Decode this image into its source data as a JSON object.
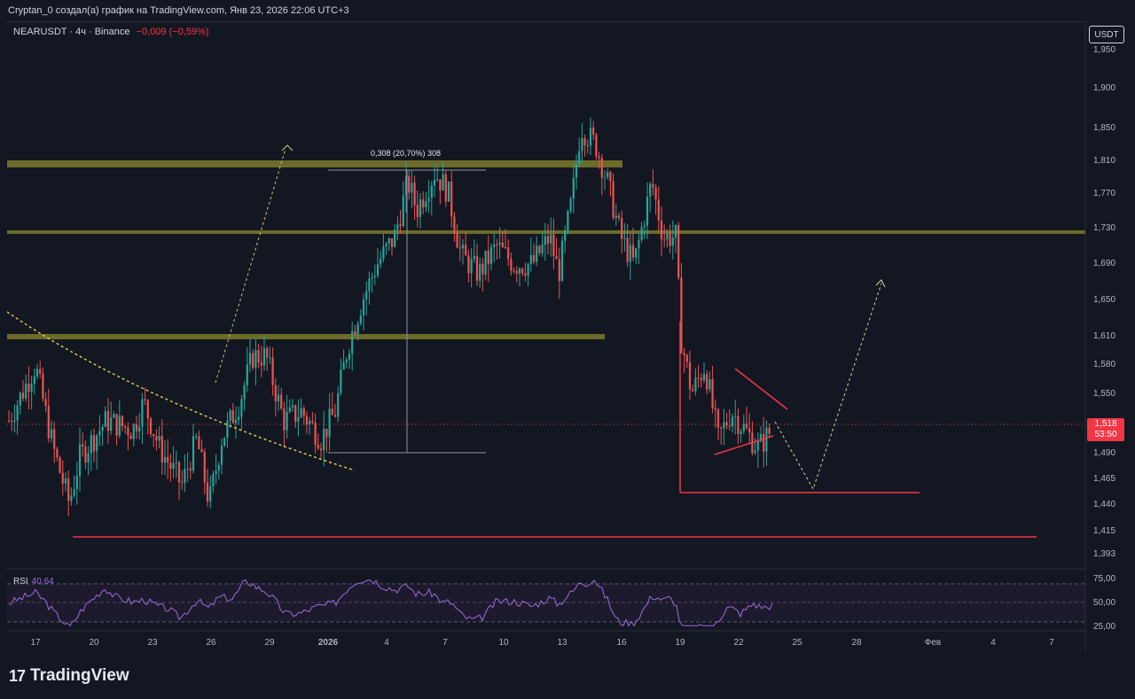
{
  "header": {
    "title": "Cryptan_0 создал(а) график на TradingView.com, Янв 23, 2026 22:06 UTC+3"
  },
  "symbol": {
    "name": "NEARUSDT · 4ч · Binance",
    "change": "−0,009 (−0,59%)"
  },
  "currency": "USDT",
  "current_price": {
    "value": "1,518",
    "countdown": "53:50"
  },
  "measure_label": "0,308 (20,70%) 308",
  "rsi": {
    "label": "RSI",
    "value": "40,64"
  },
  "brand": {
    "name": "TradingView"
  },
  "chart_data": {
    "type": "candlestick",
    "price_axis": [
      "1,950",
      "1,900",
      "1,850",
      "1,810",
      "1,770",
      "1,730",
      "1,690",
      "1,650",
      "1,610",
      "1,580",
      "1,550",
      "1,518",
      "1,490",
      "1,465",
      "1,440",
      "1,415",
      "1,393"
    ],
    "rsi_axis": [
      "75,00",
      "50,00",
      "25,00"
    ],
    "time_axis": [
      "17",
      "20",
      "23",
      "26",
      "29",
      "2026",
      "4",
      "7",
      "10",
      "13",
      "16",
      "19",
      "22",
      "25",
      "28",
      "Фев",
      "4",
      "7"
    ],
    "horizontal_levels": [
      1.81,
      1.73,
      1.61,
      1.45,
      1.41
    ],
    "current_price": 1.518,
    "colors": {
      "up": "#26a69a",
      "down": "#ef5350",
      "level": "#6b6b2a",
      "support": "#f23645",
      "rsi": "#9c6cd6"
    }
  }
}
